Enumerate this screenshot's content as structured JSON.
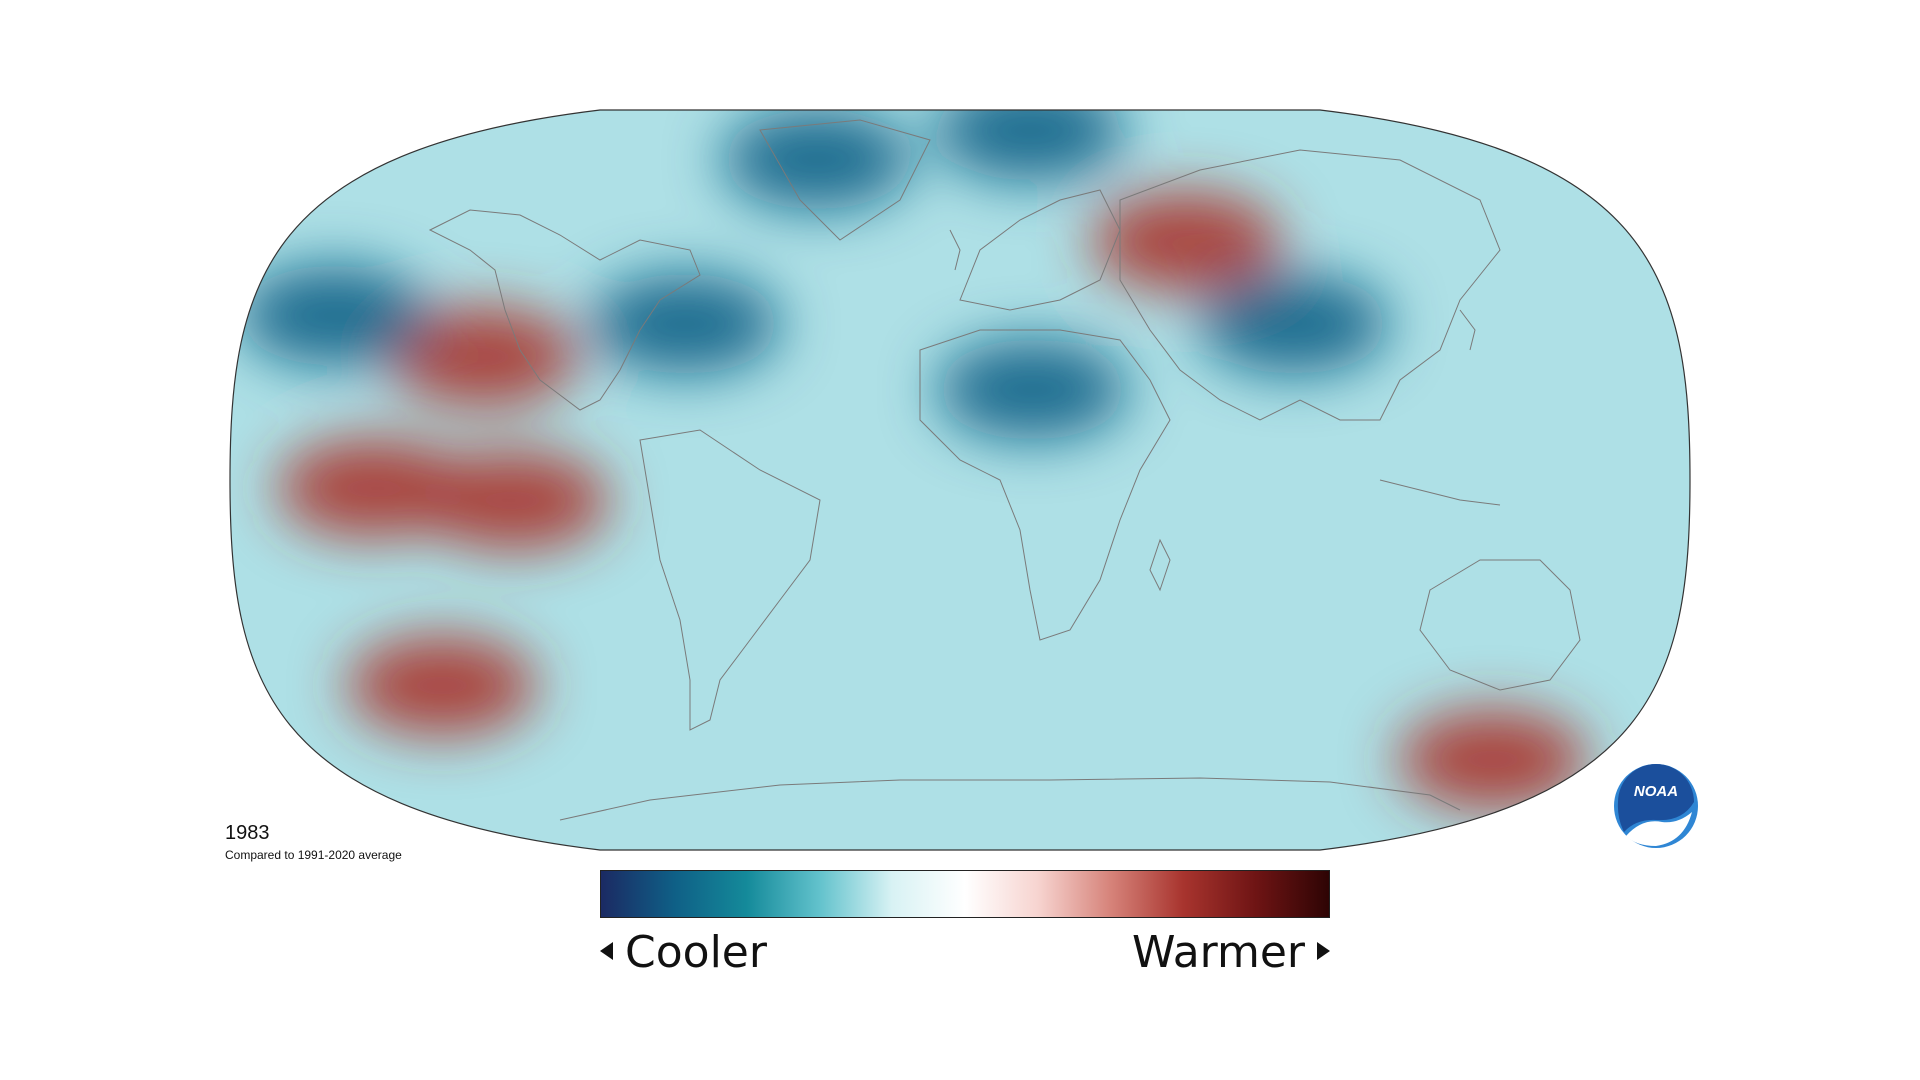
{
  "map": {
    "projection": "Robinson",
    "year": "1983",
    "baseline": "Compared to 1991-2020 average"
  },
  "legend": {
    "cooler_label": "Cooler",
    "warmer_label": "Warmer",
    "colors": [
      "#1b2a63",
      "#0f5f86",
      "#148a9a",
      "#62c2cc",
      "#d8f2f4",
      "#ffffff",
      "#f7d4d0",
      "#d6837a",
      "#a8342e",
      "#6e1414",
      "#2e0404"
    ]
  },
  "logo": {
    "text": "NOAA",
    "colors": {
      "primary": "#1b4f9c",
      "accent": "#2f86d4"
    }
  },
  "anomaly_features": [
    {
      "name": "eastern-pacific-warm",
      "sign": "warm",
      "lon": -110,
      "lat": -5
    },
    {
      "name": "central-pacific-warm",
      "sign": "warm",
      "lon": -145,
      "lat": -2
    },
    {
      "name": "siberia-warm",
      "sign": "warm",
      "lon": 60,
      "lat": 58
    },
    {
      "name": "alaska-coast-warm",
      "sign": "warm",
      "lon": -120,
      "lat": 30
    },
    {
      "name": "south-pacific-warm",
      "sign": "warm",
      "lon": -135,
      "lat": -50
    },
    {
      "name": "antarctic-warm",
      "sign": "warm",
      "lon": 145,
      "lat": -68
    },
    {
      "name": "greenland-cold",
      "sign": "cold",
      "lon": -40,
      "lat": 78
    },
    {
      "name": "arctic-cold",
      "sign": "cold",
      "lon": 20,
      "lat": 85
    },
    {
      "name": "north-africa-cold",
      "sign": "cold",
      "lon": 18,
      "lat": 22
    },
    {
      "name": "central-asia-cold",
      "sign": "cold",
      "lon": 85,
      "lat": 38
    },
    {
      "name": "north-pacific-cold",
      "sign": "cold",
      "lon": -160,
      "lat": 40
    },
    {
      "name": "north-atlantic-cold",
      "sign": "cold",
      "lon": -70,
      "lat": 38
    }
  ]
}
